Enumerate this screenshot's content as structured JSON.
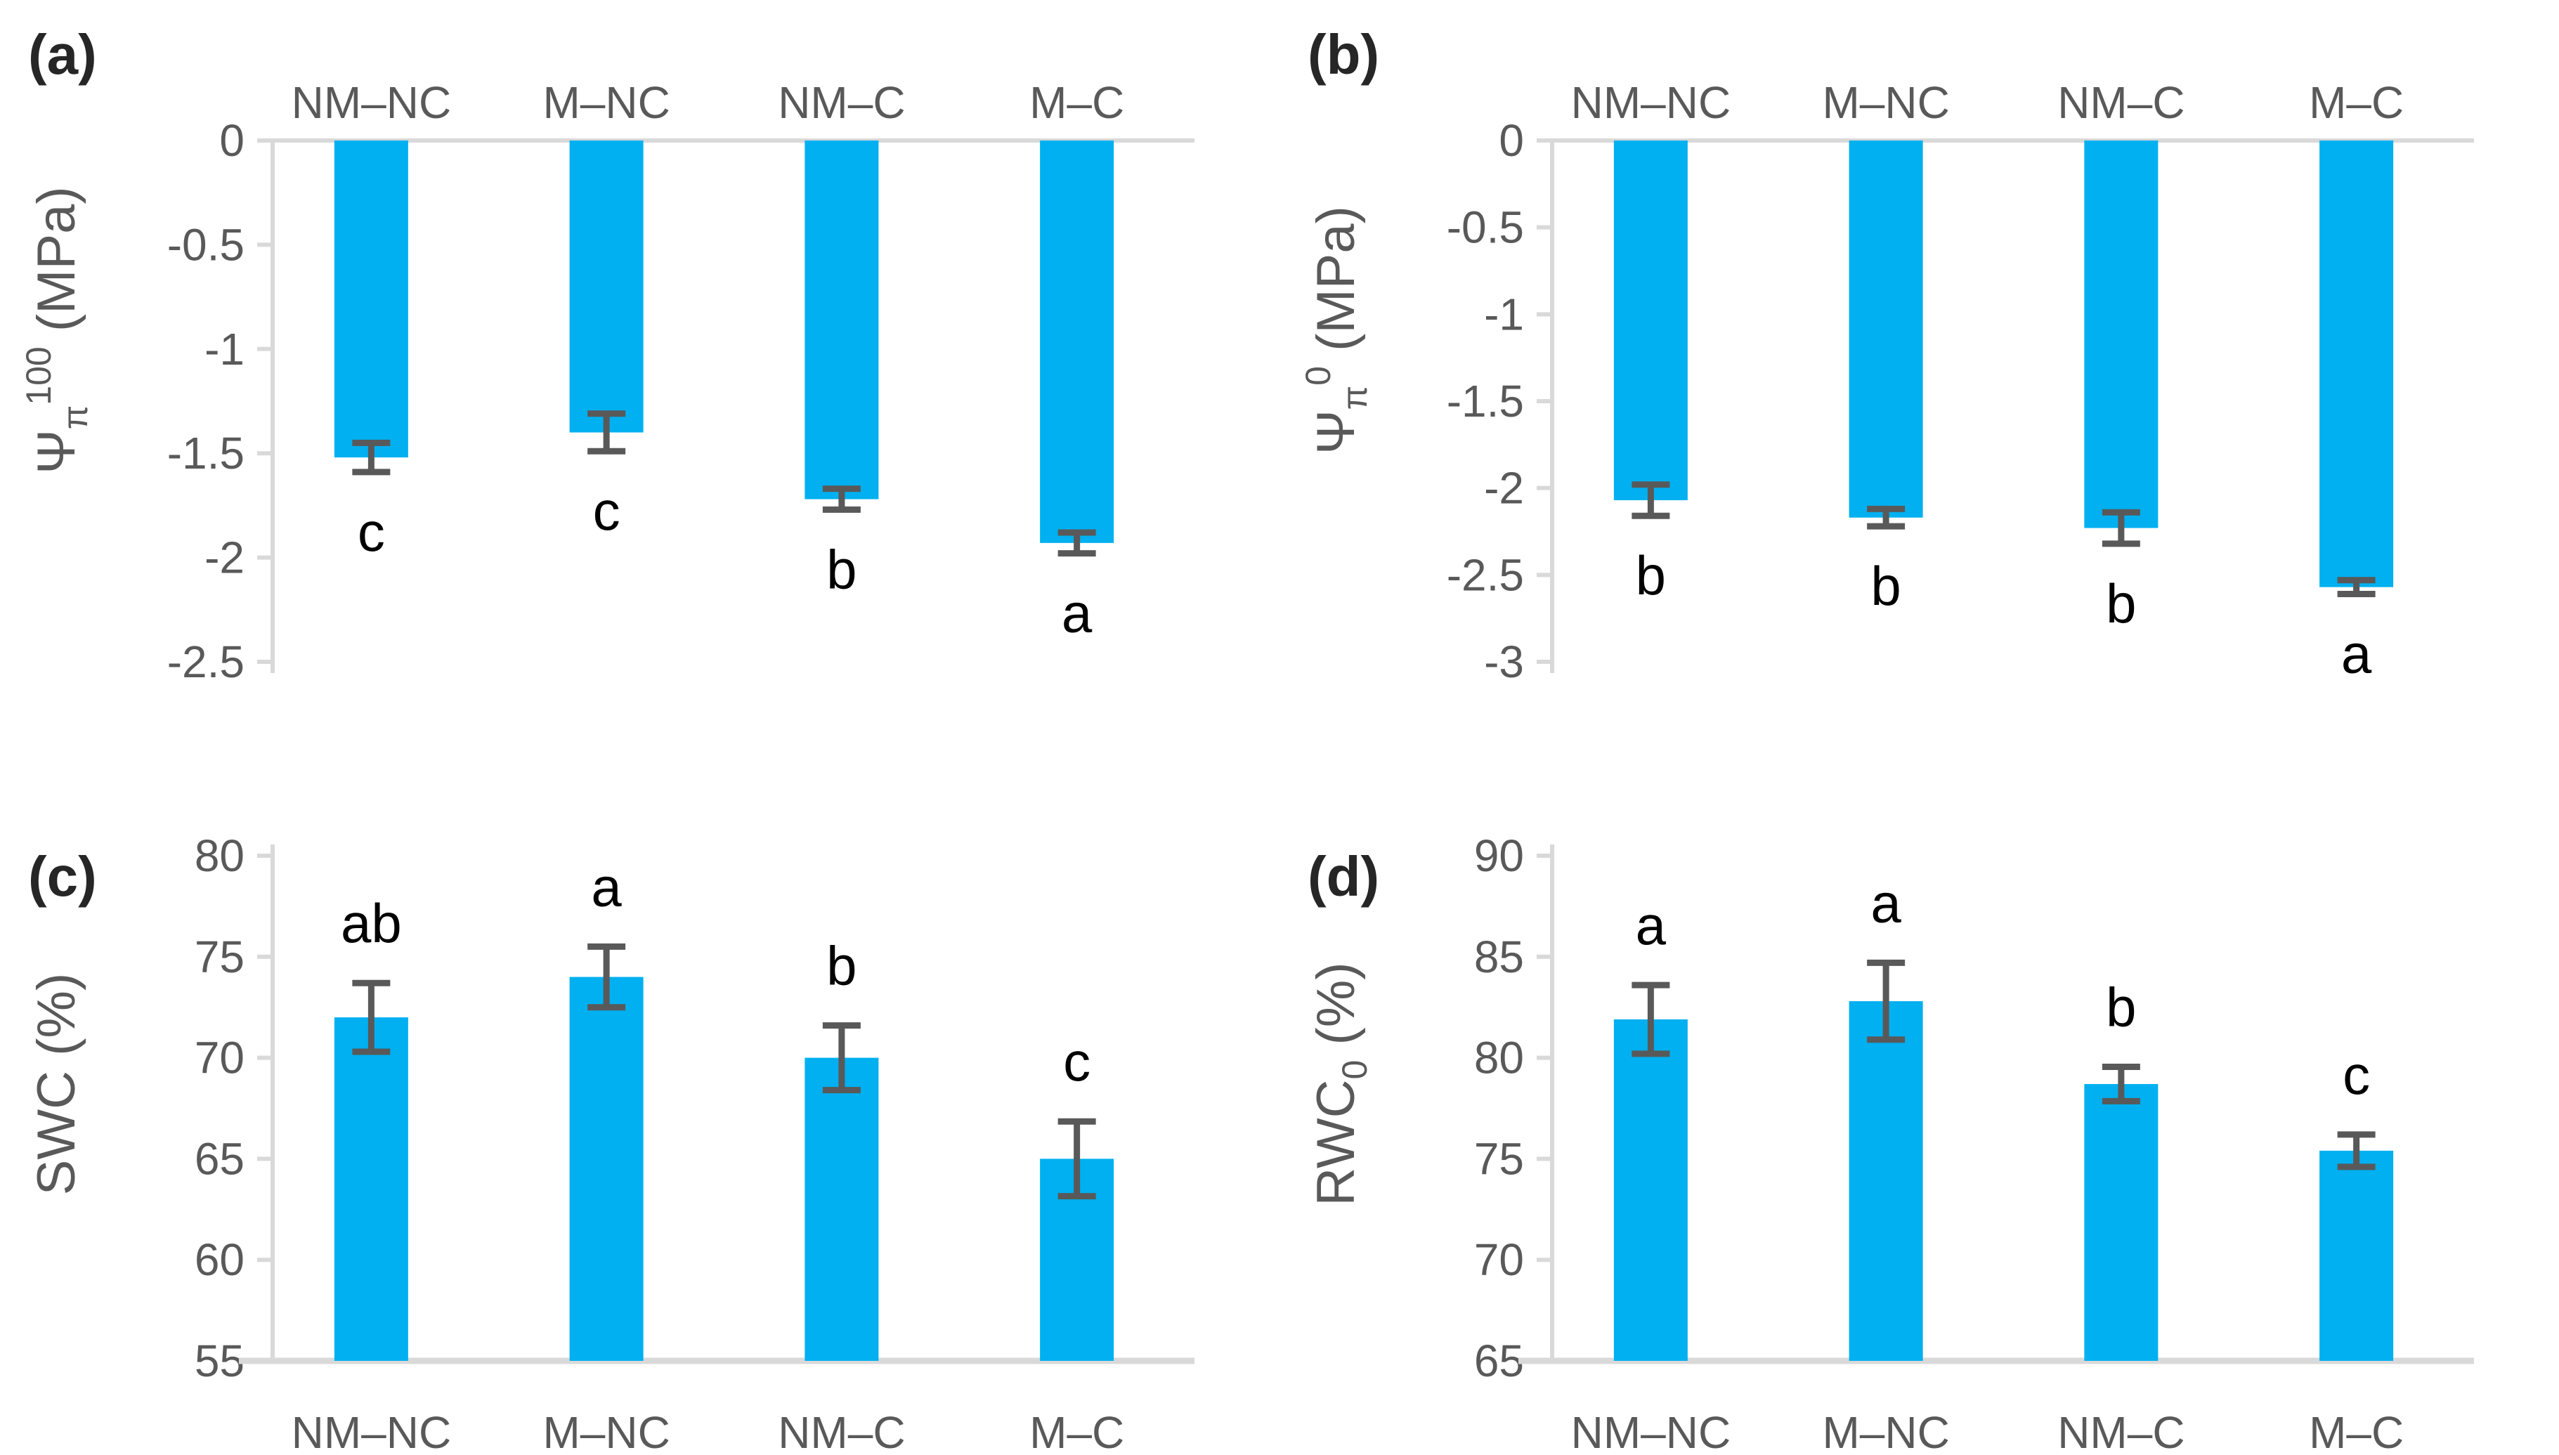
{
  "figure": {
    "background": "#FFFFFF",
    "bar_color": "#00B0F0",
    "axis_line_color": "#D9D9D9",
    "tick_text_color": "#595959",
    "category_text_color": "#595959",
    "error_bar_color": "#595959",
    "sig_letter_color": "#000000",
    "panel_label_color": "#262626"
  },
  "chart_data": [
    {
      "type": "bar",
      "panel": "(a)",
      "ylabel": "Ψπ100 (MPa)",
      "ylabel_parts": [
        {
          "t": "Ψ",
          "s": "n"
        },
        {
          "t": "π",
          "s": "sub"
        },
        {
          "t": "100",
          "s": "sup"
        },
        {
          "t": " (MPa)",
          "s": "n"
        }
      ],
      "categories": [
        "NM–NC",
        "M–NC",
        "NM–C",
        "M–C"
      ],
      "values": [
        -1.52,
        -1.4,
        -1.72,
        -1.93
      ],
      "errors": [
        0.07,
        0.09,
        0.05,
        0.05
      ],
      "sig_letters": [
        "c",
        "c",
        "b",
        "a"
      ],
      "ylim": [
        -2.5,
        0
      ],
      "ytick_values": [
        0,
        -0.5,
        -1,
        -1.5,
        -2,
        -2.5
      ],
      "ytick_labels": [
        "0",
        "-0.5",
        "-1",
        "-1.5",
        "-2",
        "-2.5"
      ],
      "bar_direction": "down",
      "category_label_position": "top",
      "grid": "off",
      "legend": "none"
    },
    {
      "type": "bar",
      "panel": "(b)",
      "ylabel": "Ψπ0 (MPa)",
      "ylabel_parts": [
        {
          "t": "Ψ",
          "s": "n"
        },
        {
          "t": "π",
          "s": "sub"
        },
        {
          "t": "0",
          "s": "sup"
        },
        {
          "t": " (MPa)",
          "s": "n"
        }
      ],
      "categories": [
        "NM–NC",
        "M–NC",
        "NM–C",
        "M–C"
      ],
      "values": [
        -2.07,
        -2.17,
        -2.23,
        -2.57
      ],
      "errors": [
        0.09,
        0.05,
        0.09,
        0.04
      ],
      "sig_letters": [
        "b",
        "b",
        "b",
        "a"
      ],
      "ylim": [
        -3,
        0
      ],
      "ytick_values": [
        0,
        -0.5,
        -1,
        -1.5,
        -2,
        -2.5,
        -3
      ],
      "ytick_labels": [
        "0",
        "-0.5",
        "-1",
        "-1.5",
        "-2",
        "-2.5",
        "-3"
      ],
      "bar_direction": "down",
      "category_label_position": "top",
      "grid": "off",
      "legend": "none"
    },
    {
      "type": "bar",
      "panel": "(c)",
      "ylabel": "SWC (%)",
      "ylabel_parts": [
        {
          "t": "SWC (%)",
          "s": "n"
        }
      ],
      "categories": [
        "NM–NC",
        "M–NC",
        "NM–C",
        "M–C"
      ],
      "values": [
        72,
        74,
        70,
        65
      ],
      "errors": [
        1.7,
        1.5,
        1.6,
        1.85
      ],
      "sig_letters": [
        "ab",
        "a",
        "b",
        "c"
      ],
      "ylim": [
        55,
        80
      ],
      "ytick_values": [
        80,
        75,
        70,
        65,
        60,
        55
      ],
      "ytick_labels": [
        "80",
        "75",
        "70",
        "65",
        "60",
        "55"
      ],
      "bar_direction": "up",
      "category_label_position": "bottom",
      "grid": "off",
      "legend": "none"
    },
    {
      "type": "bar",
      "panel": "(d)",
      "ylabel": "RWC0 (%)",
      "ylabel_parts": [
        {
          "t": "RWC",
          "s": "n"
        },
        {
          "t": "0",
          "s": "sub"
        },
        {
          "t": " (%)",
          "s": "n"
        }
      ],
      "categories": [
        "NM–NC",
        "M–NC",
        "NM–C",
        "M–C"
      ],
      "values": [
        81.9,
        82.8,
        78.7,
        75.4
      ],
      "errors": [
        1.7,
        1.9,
        0.85,
        0.8
      ],
      "sig_letters": [
        "a",
        "a",
        "b",
        "c"
      ],
      "ylim": [
        65,
        90
      ],
      "ytick_values": [
        90,
        85,
        80,
        75,
        70,
        65
      ],
      "ytick_labels": [
        "90",
        "85",
        "80",
        "75",
        "70",
        "65"
      ],
      "bar_direction": "up",
      "category_label_position": "bottom",
      "grid": "off",
      "legend": "none"
    }
  ]
}
